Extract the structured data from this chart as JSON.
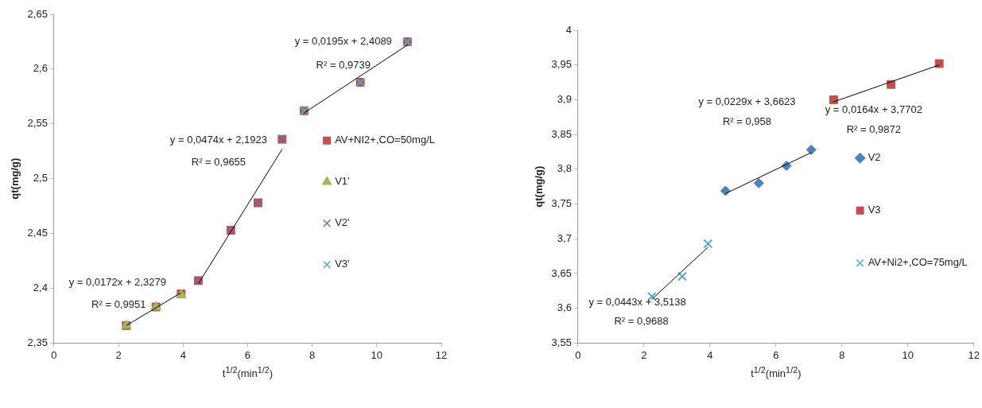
{
  "chart_data": [
    {
      "type": "scatter",
      "xlabel": "t$^{1/2}$(min$^{1/2}$)",
      "ylabel": "qt(mg/g)",
      "xlim": [
        0,
        12
      ],
      "xticks": [
        0,
        2,
        4,
        6,
        8,
        10,
        12
      ],
      "ylim": [
        2.35,
        2.65
      ],
      "yticks": [
        {
          "value": 2.35,
          "label": "2,35"
        },
        {
          "value": 2.4,
          "label": "2,4"
        },
        {
          "value": 2.45,
          "label": "2,45"
        },
        {
          "value": 2.5,
          "label": "2,5"
        },
        {
          "value": 2.55,
          "label": "2,55"
        },
        {
          "value": 2.6,
          "label": "2,6"
        },
        {
          "value": 2.65,
          "label": "2,65"
        }
      ],
      "legend": "right",
      "series": [
        {
          "name": "AV+NI2+,CO=50mg/L",
          "marker": "square",
          "color": "#c0504d",
          "x": [
            2.24,
            3.16,
            3.94,
            4.47,
            5.48,
            6.32,
            7.07,
            7.75,
            9.49,
            10.95
          ],
          "values": [
            2.366,
            2.383,
            2.395,
            2.407,
            2.453,
            2.478,
            2.536,
            2.562,
            2.588,
            2.625
          ]
        },
        {
          "name": "V1'",
          "marker": "triangle",
          "color": "#9bbb59",
          "x": [
            2.24,
            3.16,
            3.94
          ],
          "values": [
            2.366,
            2.383,
            2.394
          ]
        },
        {
          "name": "V2'",
          "marker": "cross",
          "color": "#8064a2",
          "x": [
            4.47,
            5.48,
            6.32,
            7.07
          ],
          "values": [
            2.407,
            2.453,
            2.478,
            2.536
          ]
        },
        {
          "name": "V3'",
          "marker": "cross",
          "color": "#4bacc6",
          "x": [
            7.75,
            9.49,
            10.95
          ],
          "values": [
            2.562,
            2.588,
            2.625
          ]
        },
        {
          "type": "line",
          "marker": "none",
          "color": "#000000",
          "x": [
            2.24,
            3.94
          ],
          "values": [
            2.366,
            2.396
          ]
        },
        {
          "type": "line",
          "marker": "none",
          "color": "#000000",
          "x": [
            4.47,
            7.07
          ],
          "values": [
            2.404,
            2.527
          ]
        },
        {
          "type": "line",
          "marker": "none",
          "color": "#000000",
          "x": [
            7.75,
            10.95
          ],
          "values": [
            2.56,
            2.622
          ]
        }
      ],
      "annotations": [
        "y = 0,0195x + 2,4089",
        "R² = 0,9739",
        "y = 0,0474x + 2,1923",
        "R² = 0,9655",
        "y = 0,0172x + 2,3279",
        "R² = 0,9951"
      ]
    },
    {
      "type": "scatter",
      "xlabel": "t$^{1/2}$(min$^{1/2}$)",
      "ylabel": "qt(mg/g)",
      "xlim": [
        0,
        12
      ],
      "xticks": [
        0,
        2,
        4,
        6,
        8,
        10,
        12
      ],
      "ylim": [
        3.55,
        4
      ],
      "yticks": [
        {
          "value": 3.55,
          "label": "3,55"
        },
        {
          "value": 3.6,
          "label": "3,6"
        },
        {
          "value": 3.65,
          "label": "3,65"
        },
        {
          "value": 3.7,
          "label": "3,7"
        },
        {
          "value": 3.75,
          "label": "3,75"
        },
        {
          "value": 3.8,
          "label": "3,8"
        },
        {
          "value": 3.85,
          "label": "3,85"
        },
        {
          "value": 3.9,
          "label": "3,9"
        },
        {
          "value": 3.95,
          "label": "3,95"
        },
        4
      ],
      "legend": "right",
      "series": [
        {
          "name": "V2",
          "marker": "diamond",
          "color": "#4f81bd",
          "x": [
            4.47,
            5.48,
            6.32,
            7.07
          ],
          "values": [
            3.769,
            3.78,
            3.805,
            3.828
          ]
        },
        {
          "name": "V3",
          "marker": "square",
          "color": "#c0504d",
          "x": [
            7.75,
            9.49,
            10.95
          ],
          "values": [
            3.9,
            3.922,
            3.952
          ]
        },
        {
          "name": "AV+Ni2+,CO=75mg/L",
          "marker": "cross",
          "color": "#4bacc6",
          "x": [
            2.24,
            3.16,
            3.94
          ],
          "values": [
            3.617,
            3.646,
            3.693
          ]
        },
        {
          "type": "line",
          "marker": "none",
          "color": "#000000",
          "x": [
            4.47,
            7.07
          ],
          "values": [
            3.765,
            3.824
          ]
        },
        {
          "type": "line",
          "marker": "none",
          "color": "#000000",
          "x": [
            7.75,
            10.95
          ],
          "values": [
            3.897,
            3.95
          ]
        },
        {
          "type": "line",
          "marker": "none",
          "color": "#000000",
          "x": [
            2.24,
            3.94
          ],
          "values": [
            3.613,
            3.688
          ]
        }
      ],
      "annotations": [
        "y = 0,0229x + 3,6623",
        "R² = 0,958",
        "y = 0,0164x + 3,7702",
        "R² = 0,9872",
        "y = 0,0443x + 3,5138",
        "R² = 0,9688"
      ]
    }
  ]
}
